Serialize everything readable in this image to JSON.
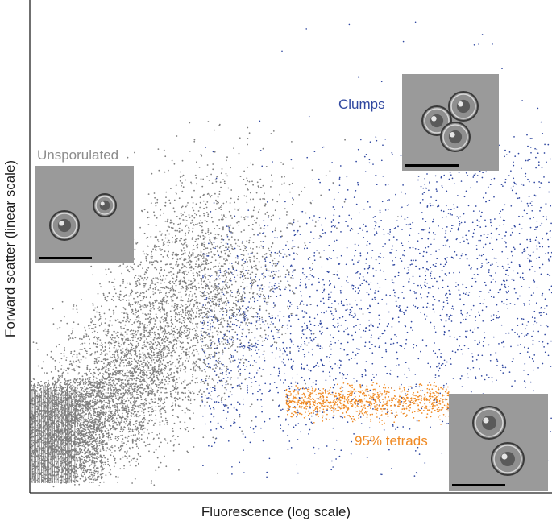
{
  "chart_data": {
    "type": "scatter",
    "title": "",
    "xlabel": "Fluorescence (log scale)",
    "ylabel": "Forward scatter (linear scale)",
    "x_scale": "log",
    "y_scale": "linear",
    "grid": false,
    "legend": "none",
    "series": [
      {
        "name": "Unsporulated",
        "color": "#808080",
        "approx_x_range": "low",
        "approx_y_range": "low to mid"
      },
      {
        "name": "Clumps",
        "color": "#2f47a0",
        "approx_x_range": "mid to high",
        "approx_y_range": "mid to high"
      },
      {
        "name": "95% tetrads",
        "color": "#f08a24",
        "approx_x_range": "mid",
        "approx_y_range": "low"
      }
    ],
    "annotations": [
      {
        "text": "Unsporulated",
        "color": "#8c8c8c"
      },
      {
        "text": "Clumps",
        "color": "#2f47a0"
      },
      {
        "text": "95% tetrads",
        "color": "#f08a24"
      }
    ],
    "insets": [
      {
        "depicts": "micrograph of unsporulated cells",
        "scale_bar": true
      },
      {
        "depicts": "micrograph of clumped cells",
        "scale_bar": true
      },
      {
        "depicts": "micrograph of tetrads",
        "scale_bar": true
      }
    ]
  }
}
